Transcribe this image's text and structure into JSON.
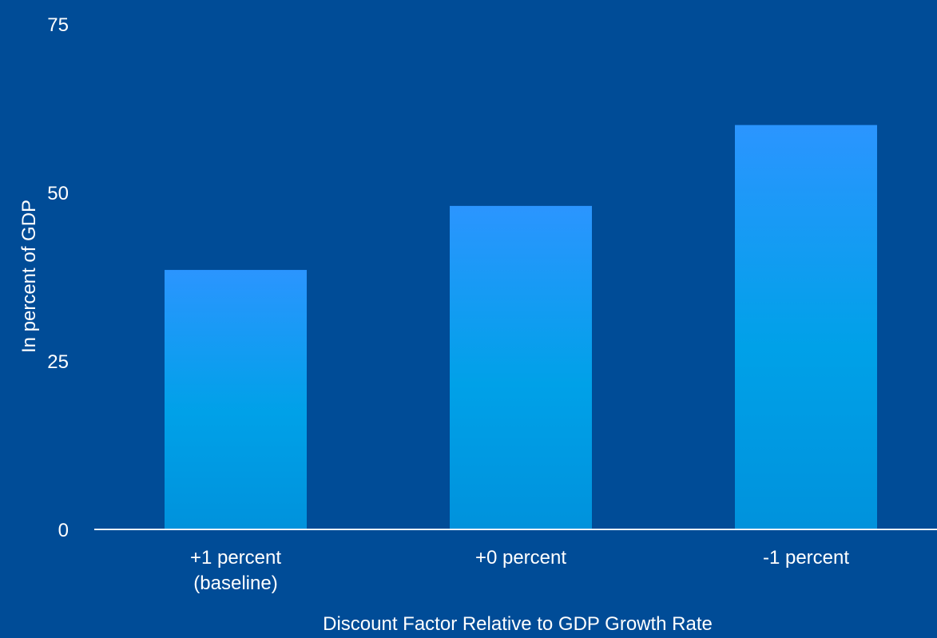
{
  "chart_data": {
    "type": "bar",
    "title": "",
    "xlabel": "Discount Factor Relative to GDP Growth Rate",
    "ylabel": "In percent of GDP",
    "categories": [
      [
        "+1 percent",
        "(baseline)"
      ],
      [
        "+0 percent"
      ],
      [
        "-1 percent"
      ]
    ],
    "values": [
      38.5,
      48,
      60
    ],
    "ylim": [
      0,
      75
    ],
    "yticks": [
      "0",
      "25",
      "50",
      "75"
    ],
    "grid": false,
    "legend": "none"
  },
  "colors": {
    "background": "#004c97",
    "bar_top": "#2b95ff",
    "bar_mid": "#00a1e8",
    "bar_bottom": "#0092dc",
    "axis_line": "#e8f1fb",
    "text": "#ffffff"
  }
}
